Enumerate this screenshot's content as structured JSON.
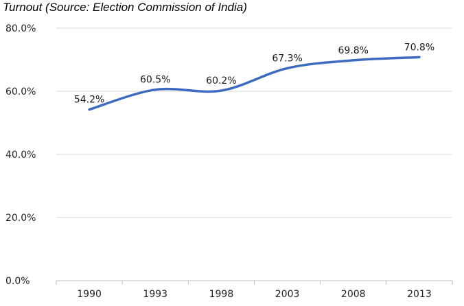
{
  "chart_data": {
    "type": "line",
    "title": "Turnout (Source: Election Commission of India)",
    "categories": [
      "1990",
      "1993",
      "1998",
      "2003",
      "2008",
      "2013"
    ],
    "series": [
      {
        "name": "Turnout",
        "values": [
          54.2,
          60.5,
          60.2,
          67.3,
          69.8,
          70.8
        ]
      }
    ],
    "data_labels": [
      "54.2%",
      "60.5%",
      "60.2%",
      "67.3%",
      "69.8%",
      "70.8%"
    ],
    "yticks": [
      "0.0%",
      "20.0%",
      "40.0%",
      "60.0%",
      "80.0%"
    ],
    "ytick_values": [
      0,
      20,
      40,
      60,
      80
    ],
    "ylim": [
      0,
      80
    ],
    "xlabel": "",
    "ylabel": "",
    "grid": true,
    "line_color": "#3c6bbf",
    "grid_color": "#d9d9d9"
  }
}
